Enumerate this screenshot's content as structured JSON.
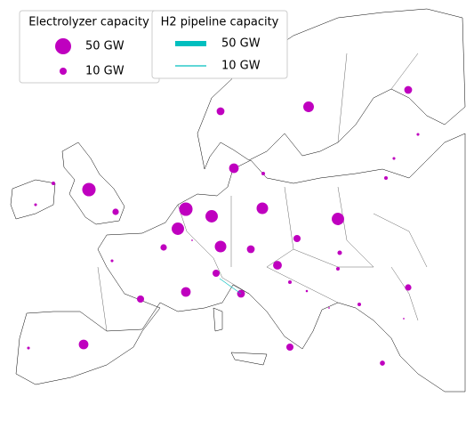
{
  "legend_electrolyzer": {
    "title": "Electrolyzer capacity",
    "items": [
      {
        "label": "50 GW",
        "value": 50
      },
      {
        "label": "10 GW",
        "value": 10
      }
    ]
  },
  "legend_pipeline": {
    "title": "H2 pipeline capacity",
    "items": [
      {
        "label": "50 GW",
        "value": 50
      },
      {
        "label": "10 GW",
        "value": 10
      }
    ]
  },
  "electrolyzer_color": "#bf00bf",
  "pipeline_color": "#00bfbf",
  "electrolyzer_capacity": [
    2.5,
    1.5,
    35,
    8,
    12,
    22,
    12,
    1.5,
    1.5,
    2.5,
    18,
    2.5,
    35,
    30,
    30,
    0.5,
    26,
    30,
    26,
    8,
    12,
    10,
    4,
    15,
    2.5,
    1.5,
    10,
    2.5,
    8,
    18,
    12,
    10,
    1,
    2.5,
    0.5,
    0.5,
    18,
    1.5,
    10,
    5
  ],
  "pipeline_capacity": [
    5
  ]
}
